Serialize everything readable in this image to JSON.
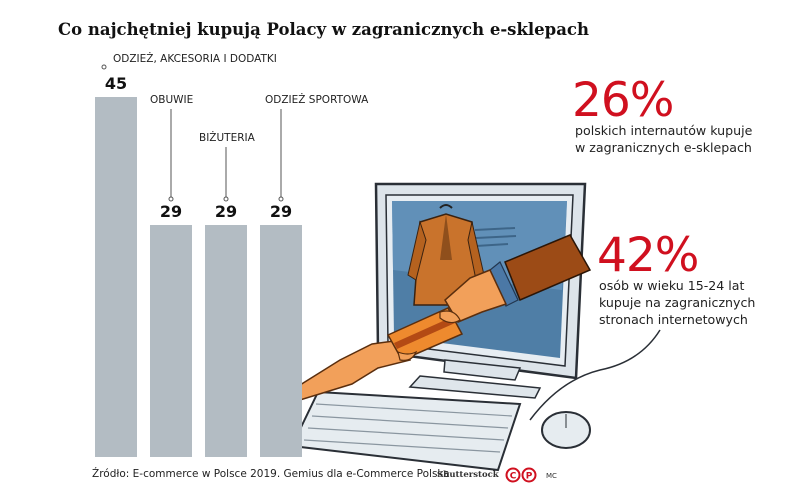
{
  "title": "Co najchętniej kupują Polacy w zagranicznych e-sklepach",
  "chart_data": {
    "type": "bar",
    "categories": [
      "ODZIEŻ, AKCESORIA I DODATKI",
      "OBUWIE",
      "BIŻUTERIA",
      "ODZIEŻ SPORTOWA"
    ],
    "values": [
      45,
      29,
      29,
      29
    ],
    "bar_color": "#b3bcc3"
  },
  "stats": [
    {
      "value": "26%",
      "text": [
        "polskich internautów kupuje",
        "w zagranicznych e-sklepach"
      ],
      "color": "#d0101f"
    },
    {
      "value": "42%",
      "text": [
        "osób w wieku 15-24 lat",
        "kupuje na zagranicznych",
        "stronach internetowych"
      ],
      "color": "#d0101f"
    }
  ],
  "footer": {
    "source": "Źródło: E-commerce w Polsce 2019. Gemius dla e-Commerce Polska",
    "credit": "Shutterstock",
    "logo_text": "CP",
    "initials": "MC"
  }
}
